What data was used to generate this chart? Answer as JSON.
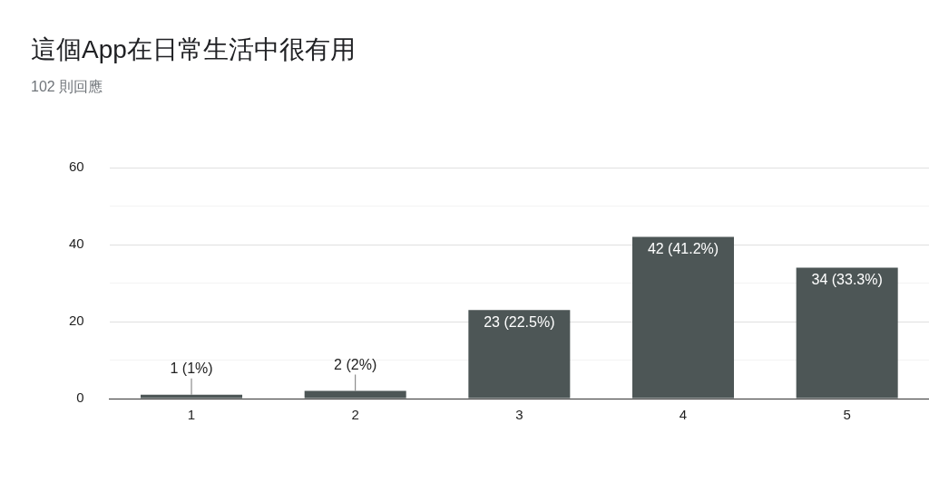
{
  "chart_data": {
    "type": "bar",
    "title": "這個App在日常生活中很有用",
    "subtitle": "102 則回應",
    "categories": [
      "1",
      "2",
      "3",
      "4",
      "5"
    ],
    "values": [
      1,
      2,
      23,
      42,
      34
    ],
    "value_labels": [
      "1 (1%)",
      "2 (2%)",
      "23 (22.5%)",
      "42 (41.2%)",
      "34 (33.3%)"
    ],
    "color": "#4d5656",
    "ylim": [
      0,
      60
    ],
    "yticks": [
      0,
      {
        "value": 10,
        "label": null
      },
      20,
      {
        "value": 30,
        "label": null
      },
      40,
      {
        "value": 50,
        "label": null
      },
      60
    ],
    "grid": "y",
    "legend": false
  }
}
